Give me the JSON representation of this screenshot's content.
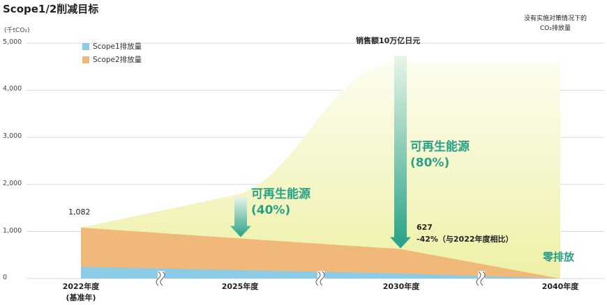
{
  "page": {
    "title": "Scope1/2削减目标",
    "unit": "(千tCO₂)",
    "note_line1": "没有实施对策情况下的",
    "note_line2": "CO₂排放量",
    "sales_label": "销售额10万亿日元",
    "renewable_2025_line1": "可再生能源",
    "renewable_2025_line2": "(40%)",
    "renewable_2030_line1": "可再生能源",
    "renewable_2030_line2": "(80%)",
    "value_2030": "627",
    "reduction_2030": "-42%（与2022年度相比）",
    "first_value": "1,082",
    "zero_emission": "零排放"
  },
  "colors": {
    "scope1": "#8ccbe6",
    "scope2": "#f0b97a",
    "bau_light": "#fafae0",
    "bau_dark": "#eef0a6",
    "arrow_top": "#d8eed8",
    "arrow_bottom": "#27a186",
    "grid": "#d9d9d9"
  },
  "chart_data": {
    "type": "area",
    "title": "Scope1/2削减目标",
    "ylabel": "(千tCO₂)",
    "ylim": [
      0,
      5000
    ],
    "yticks": [
      "0",
      "1,000",
      "2,000",
      "3,000",
      "4,000",
      "5,000"
    ],
    "categories": [
      "2022年度",
      "2025年度",
      "2030年度",
      "2040年度"
    ],
    "x_label_2022_sub": "(基准年)",
    "legend": [
      "Scope1排放量",
      "Scope2排放量"
    ],
    "legend_position": "top-left",
    "series": [
      {
        "name": "Scope1排放量",
        "values": [
          250,
          180,
          110,
          0
        ]
      },
      {
        "name": "Scope2排放量",
        "values": [
          832,
          670,
          517,
          0
        ]
      }
    ],
    "total": [
      1082,
      850,
      627,
      0
    ],
    "bau": [
      1082,
      1800,
      4600,
      4600
    ],
    "annotations": [
      "1,082",
      "627",
      "-42%（与2022年度相比）",
      "零排放",
      "销售额10万亿日元"
    ]
  }
}
